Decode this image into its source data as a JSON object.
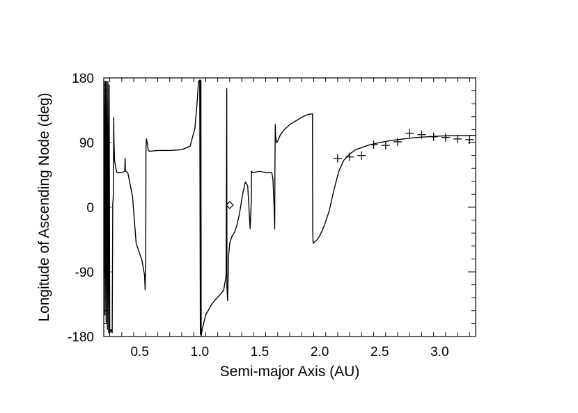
{
  "chart_data": {
    "type": "line",
    "xlabel": "Semi-major Axis (AU)",
    "ylabel": "Longitude of Ascending Node (deg)",
    "xlim": [
      0.2,
      3.3
    ],
    "ylim": [
      -180,
      180
    ],
    "x_ticks": [
      0.5,
      1.0,
      1.5,
      2.0,
      2.5,
      3.0
    ],
    "x_tick_labels": [
      "0.5",
      "1.0",
      "1.5",
      "2.0",
      "2.5",
      "3.0"
    ],
    "y_ticks": [
      -180,
      -90,
      0,
      90,
      180
    ],
    "y_tick_labels": [
      "-180",
      "-90",
      "0",
      "90",
      "180"
    ],
    "grid": false,
    "series": [
      {
        "style": "line",
        "x": [
          0.2,
          0.205,
          0.205,
          0.21,
          0.215,
          0.215,
          0.22,
          0.225,
          0.225,
          0.23,
          0.235,
          0.235,
          0.24,
          0.245,
          0.245,
          0.25,
          0.26,
          0.27,
          0.275,
          0.278,
          0.28,
          0.283,
          0.285,
          0.29,
          0.3,
          0.31,
          0.35,
          0.375,
          0.378,
          0.38,
          0.385,
          0.4,
          0.44,
          0.47,
          0.5,
          0.52,
          0.53,
          0.54,
          0.545,
          0.55,
          0.552,
          0.555,
          0.565,
          0.57,
          0.575,
          0.58,
          0.59,
          0.65,
          0.75,
          0.85,
          0.92,
          0.96,
          0.98,
          0.99,
          1.0,
          1.005,
          1.008,
          1.01,
          1.012,
          1.02,
          1.05,
          1.1,
          1.15,
          1.18,
          1.2,
          1.22,
          1.225,
          1.227,
          1.232,
          1.236,
          1.24,
          1.25,
          1.27,
          1.29,
          1.31,
          1.33,
          1.36,
          1.38,
          1.4,
          1.42,
          1.43,
          1.432,
          1.435,
          1.44,
          1.5,
          1.55,
          1.58,
          1.6,
          1.61,
          1.62,
          1.625,
          1.627,
          1.63,
          1.632,
          1.64,
          1.65,
          1.67,
          1.7,
          1.75,
          1.8,
          1.85,
          1.9,
          1.94,
          1.942,
          1.945,
          1.96,
          1.98,
          2.0,
          2.04,
          2.08,
          2.12,
          2.16,
          2.2,
          2.25,
          2.3,
          2.4,
          2.5,
          2.6,
          2.7,
          2.8,
          2.9,
          3.0,
          3.1,
          3.2,
          3.3
        ],
        "y": [
          -100,
          175,
          175,
          -150,
          175,
          175,
          -160,
          175,
          175,
          -170,
          175,
          175,
          -175,
          170,
          170,
          -175,
          -170,
          -175,
          5,
          10,
          20,
          125,
          95,
          65,
          55,
          48,
          48,
          50,
          68,
          52,
          50,
          48,
          15,
          -50,
          -65,
          -75,
          -85,
          -95,
          -115,
          -75,
          80,
          95,
          88,
          80,
          79,
          78,
          78,
          79,
          79,
          80,
          85,
          110,
          150,
          175,
          177,
          -177,
          175,
          177,
          -180,
          -170,
          -150,
          -135,
          -125,
          -120,
          -115,
          -95,
          165,
          -110,
          -130,
          -100,
          -70,
          -50,
          -40,
          -35,
          -25,
          -10,
          20,
          35,
          30,
          -30,
          10,
          50,
          50,
          48,
          50,
          48,
          48,
          48,
          40,
          0,
          -30,
          55,
          115,
          100,
          90,
          92,
          100,
          107,
          115,
          120,
          125,
          129,
          130,
          -35,
          -50,
          -48,
          -45,
          -40,
          -25,
          -5,
          25,
          50,
          65,
          74,
          80,
          86,
          90,
          93,
          95,
          97,
          98,
          99,
          99.5,
          99.8,
          100
        ],
        "color": "#000000"
      },
      {
        "style": "marker",
        "marker": "plus",
        "x": [
          2.15,
          2.25,
          2.35,
          2.45,
          2.55,
          2.65,
          2.75,
          2.85,
          2.95,
          3.05,
          3.15,
          3.25
        ],
        "y": [
          68,
          70,
          72,
          87,
          86,
          91,
          103,
          101,
          98,
          97,
          95,
          94
        ],
        "color": "#000000"
      },
      {
        "style": "marker",
        "marker": "diamond",
        "x": [
          1.25
        ],
        "y": [
          3
        ],
        "color": "#000000"
      }
    ]
  }
}
